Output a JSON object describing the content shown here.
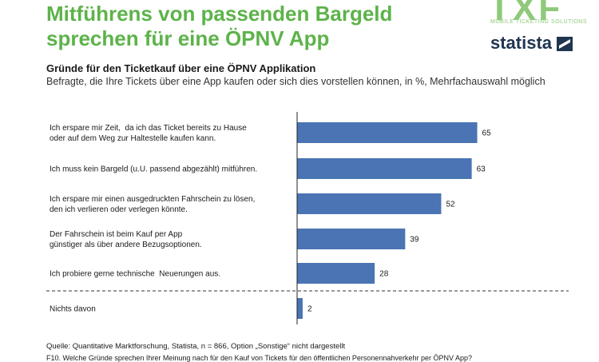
{
  "header": {
    "title_line1": "Mitführens von passenden Bargeld",
    "title_line2": "sprechen für eine ÖPNV App",
    "logo_txf": "TXF",
    "logo_txf_sub": "MOBILE TICKETING SOLUTIONS",
    "logo_statista": "statista"
  },
  "colors": {
    "bar": "#4a74b3",
    "title": "#5db34a",
    "axis": "#222222"
  },
  "chart_data": {
    "type": "bar",
    "orientation": "horizontal",
    "title": "Gründe für den Ticketkauf über eine ÖPNV Applikation",
    "subtitle": "Befragte, die Ihre Tickets über eine App kaufen oder sich dies vorstellen können, in %, Mehrfachauswahl möglich",
    "categories": [
      [
        "Ich erspare mir Zeit,  da ich das Ticket bereits zu Hause",
        "oder auf dem Weg zur Haltestelle kaufen kann."
      ],
      [
        "Ich muss kein Bargeld (u.U. passend abgezählt) mitführen."
      ],
      [
        "Ich erspare mir einen ausgedruckten Fahrschein zu lösen,",
        "den ich verlieren oder verlegen könnte."
      ],
      [
        "Der Fahrschein ist beim Kauf per App",
        "günstiger als über andere Bezugsoptionen."
      ],
      [
        "Ich probiere gerne technische  Neuerungen aus."
      ],
      [
        "Nichts davon"
      ]
    ],
    "values": [
      65,
      63,
      52,
      39,
      28,
      2
    ],
    "value_labels": [
      "65",
      "63",
      "52",
      "39",
      "28",
      "2"
    ],
    "xlim": [
      0,
      100
    ],
    "separator_before_index": 5,
    "grid": false
  },
  "footer": {
    "source": "Quelle:  Quantitative Marktforschung, Statista, n = 866, Option „Sonstige“ nicht dargestellt",
    "question": "F10. Welche Gründe sprechen Ihrer Meinung nach für den Kauf von Tickets für den öffentlichen Personennahverkehr per ÖPNV App?"
  }
}
